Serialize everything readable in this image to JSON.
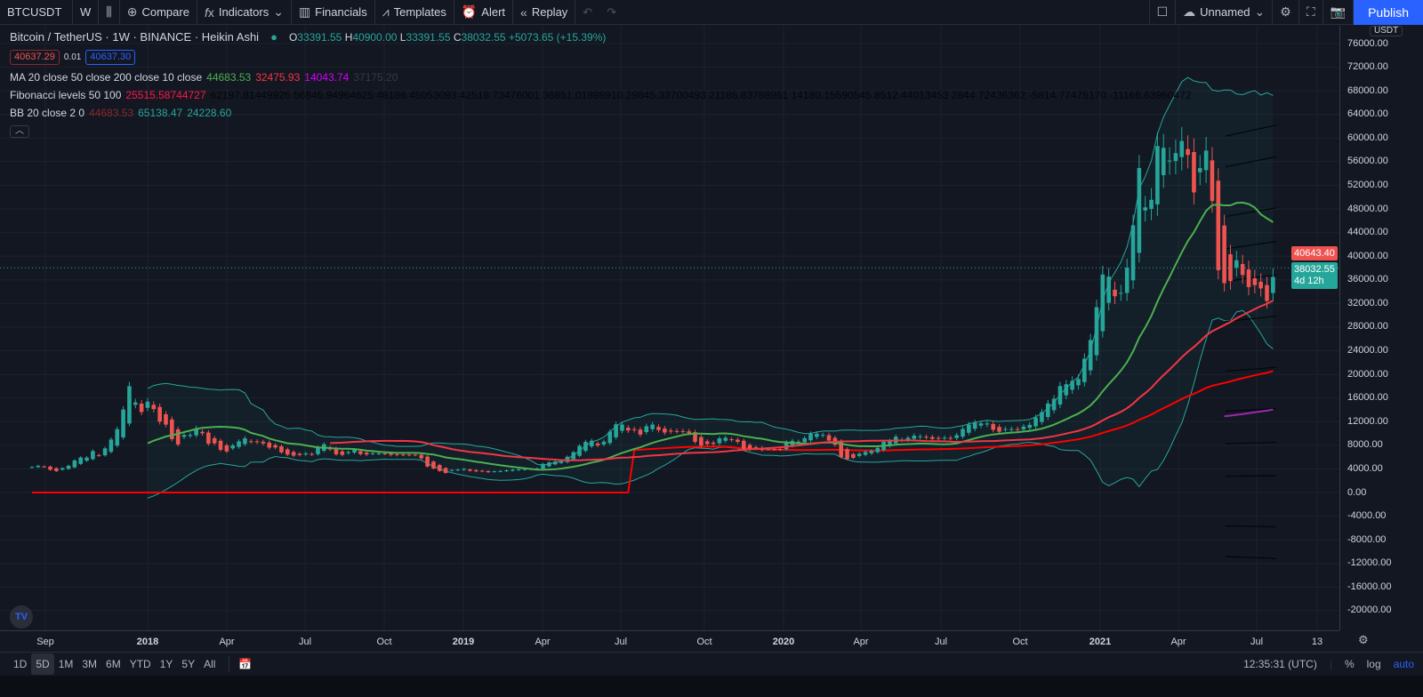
{
  "toolbar": {
    "symbol": "BTCUSDT",
    "interval": "W",
    "candle_icon": "candles-icon",
    "compare": "Compare",
    "indicators": "Indicators",
    "financials": "Financials",
    "templates": "Templates",
    "alert": "Alert",
    "replay": "Replay",
    "layout_name": "Unnamed",
    "publish": "Publish"
  },
  "legend": {
    "title": "Bitcoin / TetherUS · 1W · BINANCE · Heikin Ashi",
    "o_label": "O",
    "o": "33391.55",
    "h_label": "H",
    "h": "40900.00",
    "l_label": "L",
    "l": "33391.55",
    "c_label": "C",
    "c": "38032.55",
    "change": "+5073.65 (+15.39%)",
    "sell": "40637.29",
    "spread": "0.01",
    "buy": "40637.30",
    "ma": {
      "label": "MA 20 close 50 close 200 close 10 close",
      "v1": "44683.53",
      "v2": "32475.93",
      "v3": "14043.74",
      "v4": "37175.20"
    },
    "fib": {
      "label": "Fibonacci levels 50 100",
      "main": "25515.58744727",
      "levels": "62197.81449926 56845.94964625 48186.45053093 42518.73476001 36851.01898910 29845.33700493 21185.83788961 14180.15590545 8512.44013453 2844.72436362 -5814.77475170 -11166.63960472"
    },
    "bb": {
      "label": "BB 20 close 2 0",
      "basis": "44683.53",
      "upper": "65138.47",
      "lower": "24228.60"
    }
  },
  "price_axis": {
    "currency": "USDT",
    "labels": [
      "76000.00",
      "72000.00",
      "68000.00",
      "64000.00",
      "60000.00",
      "56000.00",
      "52000.00",
      "48000.00",
      "44000.00",
      "40000.00",
      "36000.00",
      "32000.00",
      "28000.00",
      "24000.00",
      "20000.00",
      "16000.00",
      "12000.00",
      "8000.00",
      "4000.00",
      "0.00",
      "-4000.00",
      "-8000.00",
      "-12000.00",
      "-16000.00",
      "-20000.00"
    ],
    "last_price_red": "40643.40",
    "last_price": "38032.55",
    "countdown": "4d 12h"
  },
  "time_axis": {
    "labels": [
      "Sep",
      "2018",
      "Apr",
      "Jul",
      "Oct",
      "2019",
      "Apr",
      "Jul",
      "Oct",
      "2020",
      "Apr",
      "Jul",
      "Oct",
      "2021",
      "Apr",
      "Jul",
      "13"
    ]
  },
  "bottom": {
    "ranges": [
      "1D",
      "5D",
      "1M",
      "3M",
      "6M",
      "YTD",
      "1Y",
      "5Y",
      "All"
    ],
    "selected": "5D",
    "time": "12:35:31 (UTC)",
    "percent": "%",
    "log": "log",
    "auto": "auto"
  },
  "colors": {
    "up": "#26a69a",
    "down": "#ef5350",
    "ma20": "#4caf50",
    "ma50": "#f23645",
    "ma200": "#9c27b0",
    "fib": "#ff0000",
    "bb": "#26a69a",
    "accent": "#2962ff"
  },
  "chart_data": {
    "type": "candlestick",
    "style": "Heikin Ashi",
    "interval": "1W",
    "ylim": [
      -20000,
      76000
    ],
    "first_week": "2017-08-21",
    "closes": [
      4300,
      4600,
      4300,
      3700,
      3600,
      4300,
      4600,
      5700,
      6000,
      5900,
      7400,
      5900,
      8000,
      9300,
      11200,
      15000,
      19000,
      14000,
      13500,
      16000,
      13500,
      11500,
      11500,
      8200,
      8100,
      10300,
      9600,
      11300,
      9600,
      7800,
      8500,
      6800,
      7000,
      8300,
      8800,
      9300,
      8400,
      8600,
      8200,
      7400,
      7700,
      6500,
      6400,
      6200,
      6400,
      6700,
      6350,
      8100,
      8200,
      7000,
      6300,
      6400,
      7000,
      7300,
      6250,
      6500,
      6700,
      6600,
      6600,
      6300,
      6400,
      6400,
      6400,
      6350,
      5600,
      4000,
      4100,
      3500,
      3250,
      4000,
      3850,
      4050,
      3550,
      3600,
      3550,
      3400,
      3650,
      3650,
      3800,
      3900,
      3950,
      4000,
      4000,
      4100,
      5100,
      5100,
      5300,
      5300,
      6300,
      7000,
      8200,
      8700,
      8800,
      7700,
      8900,
      10800,
      11800,
      11400,
      10200,
      10700,
      9500,
      11800,
      11400,
      10300,
      10100,
      10400,
      10400,
      10300,
      10000,
      8100,
      7900,
      8300,
      8200,
      9500,
      9200,
      8800,
      8500,
      7000,
      7400,
      7500,
      7100,
      7500,
      7300,
      7350,
      8900,
      8700,
      8600,
      9400,
      10150,
      9900,
      9700,
      8500,
      7950,
      5350,
      5800,
      5900,
      6800,
      6900,
      7100,
      7700,
      8900,
      8700,
      9700,
      8700,
      9450,
      9700,
      9450,
      9300,
      9000,
      9250,
      9300,
      9150,
      9900,
      11050,
      11650,
      11900,
      11650,
      11700,
      10250,
      10300,
      10900,
      10700,
      10650,
      11350,
      11500,
      13100,
      13800,
      15500,
      16000,
      18700,
      18200,
      19150,
      19250,
      23800,
      26500,
      33000,
      38200,
      36000,
      32300,
      34300,
      39300,
      47200,
      57500,
      45200,
      51000,
      61200,
      57400,
      55800,
      58000,
      60000,
      56200,
      49000,
      56900,
      58200,
      46400,
      34700,
      35700,
      35800,
      40500,
      35600,
      34500,
      35300,
      34300,
      31800,
      38032.55
    ]
  }
}
